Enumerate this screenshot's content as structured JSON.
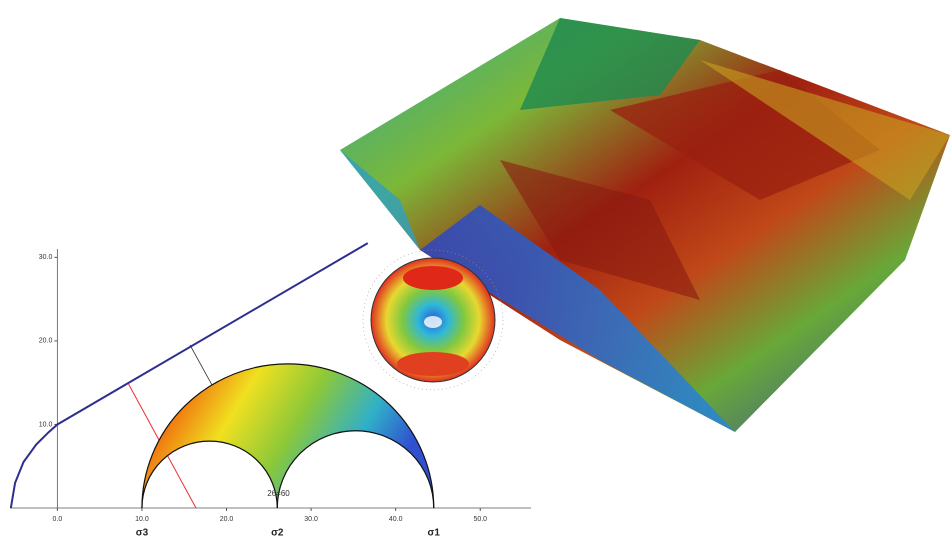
{
  "chart_data": {
    "type": "mohr",
    "xlim": [
      -5.6,
      56
    ],
    "ylim": [
      0,
      31
    ],
    "xticks": [
      {
        "value": 0,
        "label": "0.0"
      },
      {
        "value": 10,
        "label": "10.0"
      },
      {
        "value": 20,
        "label": "20.0"
      },
      {
        "value": 30,
        "label": "30.0"
      },
      {
        "value": 40,
        "label": "40.0"
      },
      {
        "value": 50,
        "label": "50.0"
      }
    ],
    "yticks": [
      {
        "value": 10,
        "label": "10.0"
      },
      {
        "value": 20,
        "label": "20.0"
      },
      {
        "value": 30,
        "label": "30.0"
      }
    ],
    "principal_stresses": {
      "labels": [
        "σ3",
        "σ2",
        "σ1"
      ],
      "values": [
        10,
        26,
        44.5
      ]
    },
    "envelope": {
      "color": "#2e2e90",
      "x": [
        -5.5,
        -5.0,
        -4.0,
        -2.5,
        -1.0,
        0,
        36.7
      ],
      "y": [
        0,
        3.0,
        5.5,
        7.6,
        9.1,
        10,
        31.7
      ]
    },
    "annotation": "2θ=60"
  }
}
